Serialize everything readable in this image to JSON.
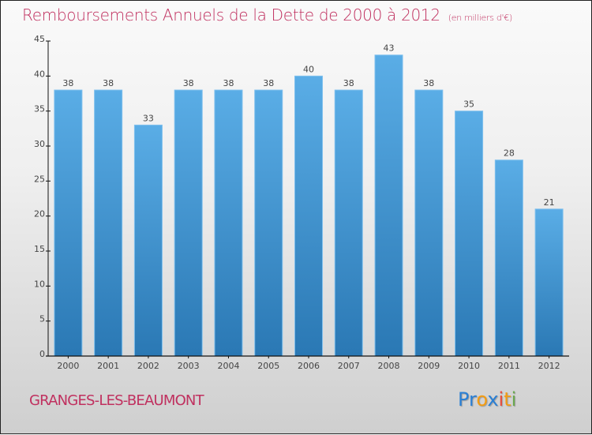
{
  "header": {
    "title": "Remboursements Annuels de la Dette de 2000 à 2012",
    "subtitle": "(en milliers d'€)"
  },
  "footer": {
    "commune": "GRANGES-LES-BEAUMONT",
    "logo": [
      {
        "text": "Pr",
        "color": "#2a7fd4"
      },
      {
        "text": "o",
        "color": "#f39c12"
      },
      {
        "text": "x",
        "color": "#2a7fd4"
      },
      {
        "text": "i",
        "color": "#e74c3c"
      },
      {
        "text": "t",
        "color": "#f39c12"
      },
      {
        "text": "i",
        "color": "#6aa84f"
      }
    ]
  },
  "colors": {
    "bar_top": "#5aade6",
    "bar_bottom": "#2a78b4",
    "title": "#c0305f"
  },
  "chart_data": {
    "type": "bar",
    "title": "Remboursements Annuels de la Dette de 2000 à 2012",
    "subtitle": "(en milliers d'€)",
    "xlabel": "",
    "ylabel": "",
    "categories": [
      "2000",
      "2001",
      "2002",
      "2003",
      "2004",
      "2005",
      "2006",
      "2007",
      "2008",
      "2009",
      "2010",
      "2011",
      "2012"
    ],
    "values": [
      38,
      38,
      33,
      38,
      38,
      38,
      40,
      38,
      43,
      38,
      35,
      28,
      21
    ],
    "ylim": [
      0,
      45
    ],
    "yticks": [
      0,
      5,
      10,
      15,
      20,
      25,
      30,
      35,
      40,
      45
    ],
    "grid": false,
    "data_labels": true
  }
}
